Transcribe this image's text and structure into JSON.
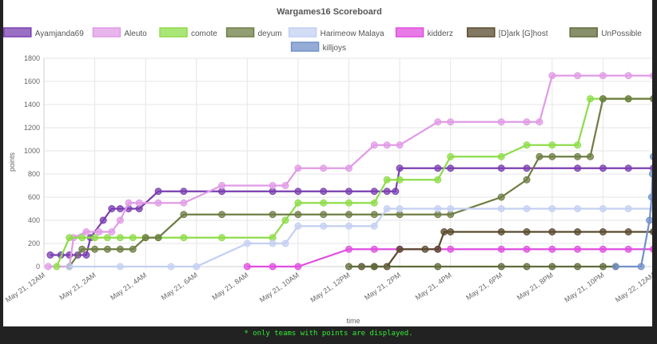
{
  "chart_data": {
    "type": "line",
    "title": "Wargames16 Scoreboard",
    "xlabel": "time",
    "ylabel": "points",
    "ylim": [
      0,
      1800
    ],
    "yticks": [
      0,
      200,
      400,
      600,
      800,
      1000,
      1200,
      1400,
      1600,
      1800
    ],
    "xlim": [
      "May 21, 12AM",
      "May 22, 12AM"
    ],
    "xticks": [
      "May 21, 12AM",
      "May 21, 2AM",
      "May 21, 4AM",
      "May 21, 6AM",
      "May 21, 8AM",
      "May 21, 10AM",
      "May 21, 12PM",
      "May 21, 2PM",
      "May 21, 4PM",
      "May 21, 6PM",
      "May 21, 8PM",
      "May 21, 10PM",
      "May 22, 12AM"
    ],
    "grid": true,
    "legend_position": "top",
    "series": [
      {
        "name": "Ayamjanda69",
        "color": "#7a3fb0",
        "points": [
          [
            "May 21, 12:15AM",
            100
          ],
          [
            "May 21, 12:40AM",
            100
          ],
          [
            "May 21, 1:00AM",
            100
          ],
          [
            "May 21, 1:20AM",
            100
          ],
          [
            "May 21, 1:40AM",
            100
          ],
          [
            "May 21, 1:50AM",
            250
          ],
          [
            "May 21, 2:20AM",
            400
          ],
          [
            "May 21, 2:40AM",
            500
          ],
          [
            "May 21, 3:00AM",
            500
          ],
          [
            "May 21, 3:20AM",
            500
          ],
          [
            "May 21, 3:45AM",
            500
          ],
          [
            "May 21, 4:30AM",
            650
          ],
          [
            "May 21, 5:30AM",
            650
          ],
          [
            "May 21, 7:00AM",
            650
          ],
          [
            "May 21, 9:00AM",
            650
          ],
          [
            "May 21, 10:00AM",
            650
          ],
          [
            "May 21, 11:00AM",
            650
          ],
          [
            "May 21, 12:00PM",
            650
          ],
          [
            "May 21, 1:00PM",
            650
          ],
          [
            "May 21, 1:30PM",
            650
          ],
          [
            "May 21, 1:50PM",
            650
          ],
          [
            "May 21, 2:00PM",
            850
          ],
          [
            "May 21, 3:30PM",
            850
          ],
          [
            "May 21, 4:00PM",
            850
          ],
          [
            "May 21, 6:00PM",
            850
          ],
          [
            "May 21, 7:00PM",
            850
          ],
          [
            "May 21, 9:00PM",
            850
          ],
          [
            "May 21, 10:00PM",
            850
          ],
          [
            "May 21, 11:00PM",
            850
          ],
          [
            "May 21, 11:59PM",
            850
          ]
        ]
      },
      {
        "name": "Aleuto",
        "color": "#e09be6",
        "points": [
          [
            "May 21, 12:10AM",
            0
          ],
          [
            "May 21, 1:00AM",
            0
          ],
          [
            "May 21, 1:10AM",
            250
          ],
          [
            "May 21, 1:40AM",
            300
          ],
          [
            "May 21, 2:10AM",
            300
          ],
          [
            "May 21, 2:40AM",
            300
          ],
          [
            "May 21, 3:00AM",
            400
          ],
          [
            "May 21, 3:20AM",
            550
          ],
          [
            "May 21, 3:45AM",
            550
          ],
          [
            "May 21, 4:30AM",
            550
          ],
          [
            "May 21, 5:30AM",
            550
          ],
          [
            "May 21, 7:00AM",
            700
          ],
          [
            "May 21, 9:00AM",
            700
          ],
          [
            "May 21, 9:30AM",
            700
          ],
          [
            "May 21, 10:00AM",
            850
          ],
          [
            "May 21, 11:00AM",
            850
          ],
          [
            "May 21, 12:00PM",
            850
          ],
          [
            "May 21, 1:00PM",
            1050
          ],
          [
            "May 21, 1:30PM",
            1050
          ],
          [
            "May 21, 2:00PM",
            1050
          ],
          [
            "May 21, 3:30PM",
            1250
          ],
          [
            "May 21, 4:00PM",
            1250
          ],
          [
            "May 21, 6:00PM",
            1250
          ],
          [
            "May 21, 7:00PM",
            1250
          ],
          [
            "May 21, 7:30PM",
            1250
          ],
          [
            "May 21, 8:00PM",
            1650
          ],
          [
            "May 21, 9:00PM",
            1650
          ],
          [
            "May 21, 10:00PM",
            1650
          ],
          [
            "May 21, 11:00PM",
            1650
          ],
          [
            "May 21, 11:59PM",
            1650
          ]
        ]
      },
      {
        "name": "comote",
        "color": "#8edc4a",
        "points": [
          [
            "May 21, 12:30AM",
            0
          ],
          [
            "May 21, 1:00AM",
            250
          ],
          [
            "May 21, 1:30AM",
            250
          ],
          [
            "May 21, 2:00AM",
            250
          ],
          [
            "May 21, 2:30AM",
            250
          ],
          [
            "May 21, 3:00AM",
            250
          ],
          [
            "May 21, 3:30AM",
            250
          ],
          [
            "May 21, 4:00AM",
            250
          ],
          [
            "May 21, 4:30AM",
            250
          ],
          [
            "May 21, 5:30AM",
            250
          ],
          [
            "May 21, 7:00AM",
            250
          ],
          [
            "May 21, 9:00AM",
            250
          ],
          [
            "May 21, 9:30AM",
            400
          ],
          [
            "May 21, 10:00AM",
            550
          ],
          [
            "May 21, 11:00AM",
            550
          ],
          [
            "May 21, 12:00PM",
            550
          ],
          [
            "May 21, 1:00PM",
            550
          ],
          [
            "May 21, 1:30PM",
            750
          ],
          [
            "May 21, 2:00PM",
            750
          ],
          [
            "May 21, 3:30PM",
            750
          ],
          [
            "May 21, 4:00PM",
            950
          ],
          [
            "May 21, 6:00PM",
            950
          ],
          [
            "May 21, 7:00PM",
            1050
          ],
          [
            "May 21, 8:00PM",
            1050
          ],
          [
            "May 21, 9:00PM",
            1050
          ],
          [
            "May 21, 9:30PM",
            1450
          ],
          [
            "May 21, 10:00PM",
            1450
          ],
          [
            "May 21, 11:00PM",
            1450
          ],
          [
            "May 21, 11:59PM",
            1450
          ]
        ]
      },
      {
        "name": "deyum",
        "color": "#6e7d44",
        "points": [
          [
            "May 21, 1:00AM",
            0
          ],
          [
            "May 21, 1:30AM",
            150
          ],
          [
            "May 21, 2:00AM",
            150
          ],
          [
            "May 21, 2:30AM",
            150
          ],
          [
            "May 21, 3:00AM",
            150
          ],
          [
            "May 21, 3:30AM",
            150
          ],
          [
            "May 21, 4:00AM",
            250
          ],
          [
            "May 21, 4:30AM",
            250
          ],
          [
            "May 21, 5:30AM",
            450
          ],
          [
            "May 21, 7:00AM",
            450
          ],
          [
            "May 21, 9:00AM",
            450
          ],
          [
            "May 21, 10:00AM",
            450
          ],
          [
            "May 21, 11:00AM",
            450
          ],
          [
            "May 21, 12:00PM",
            450
          ],
          [
            "May 21, 1:00PM",
            450
          ],
          [
            "May 21, 2:00PM",
            450
          ],
          [
            "May 21, 3:30PM",
            450
          ],
          [
            "May 21, 4:00PM",
            450
          ],
          [
            "May 21, 6:00PM",
            600
          ],
          [
            "May 21, 7:00PM",
            750
          ],
          [
            "May 21, 7:30PM",
            950
          ],
          [
            "May 21, 8:00PM",
            950
          ],
          [
            "May 21, 9:00PM",
            950
          ],
          [
            "May 21, 9:30PM",
            950
          ],
          [
            "May 21, 10:00PM",
            1450
          ],
          [
            "May 21, 11:00PM",
            1450
          ],
          [
            "May 21, 11:59PM",
            1450
          ]
        ]
      },
      {
        "name": "Harimeow Malaya",
        "color": "#c4d0f2",
        "points": [
          [
            "May 21, 1:00AM",
            0
          ],
          [
            "May 21, 3:00AM",
            0
          ],
          [
            "May 21, 5:00AM",
            0
          ],
          [
            "May 21, 6:00AM",
            0
          ],
          [
            "May 21, 8:00AM",
            200
          ],
          [
            "May 21, 9:00AM",
            200
          ],
          [
            "May 21, 9:30AM",
            200
          ],
          [
            "May 21, 10:00AM",
            350
          ],
          [
            "May 21, 11:00AM",
            350
          ],
          [
            "May 21, 12:00PM",
            350
          ],
          [
            "May 21, 1:00PM",
            350
          ],
          [
            "May 21, 1:30PM",
            500
          ],
          [
            "May 21, 2:00PM",
            500
          ],
          [
            "May 21, 3:30PM",
            500
          ],
          [
            "May 21, 4:00PM",
            500
          ],
          [
            "May 21, 6:00PM",
            500
          ],
          [
            "May 21, 7:00PM",
            500
          ],
          [
            "May 21, 8:00PM",
            500
          ],
          [
            "May 21, 9:00PM",
            500
          ],
          [
            "May 21, 10:00PM",
            500
          ],
          [
            "May 21, 11:00PM",
            500
          ],
          [
            "May 21, 11:59PM",
            500
          ]
        ]
      },
      {
        "name": "kidderz",
        "color": "#e04ee0",
        "points": [
          [
            "May 21, 8:00AM",
            0
          ],
          [
            "May 21, 9:00AM",
            0
          ],
          [
            "May 21, 10:00AM",
            0
          ],
          [
            "May 21, 12:00PM",
            150
          ],
          [
            "May 21, 1:00PM",
            150
          ],
          [
            "May 21, 2:00PM",
            150
          ],
          [
            "May 21, 3:30PM",
            150
          ],
          [
            "May 21, 4:00PM",
            150
          ],
          [
            "May 21, 6:00PM",
            150
          ],
          [
            "May 21, 7:00PM",
            150
          ],
          [
            "May 21, 8:00PM",
            150
          ],
          [
            "May 21, 9:00PM",
            150
          ],
          [
            "May 21, 10:00PM",
            150
          ],
          [
            "May 21, 11:00PM",
            150
          ],
          [
            "May 21, 11:59PM",
            150
          ]
        ]
      },
      {
        "name": "[D]ark [G]host",
        "color": "#5a4b2e",
        "points": [
          [
            "May 21, 12:30PM",
            0
          ],
          [
            "May 21, 1:00PM",
            0
          ],
          [
            "May 21, 1:30PM",
            0
          ],
          [
            "May 21, 2:00PM",
            150
          ],
          [
            "May 21, 3:00PM",
            150
          ],
          [
            "May 21, 3:30PM",
            150
          ],
          [
            "May 21, 3:45PM",
            300
          ],
          [
            "May 21, 4:00PM",
            300
          ],
          [
            "May 21, 6:00PM",
            300
          ],
          [
            "May 21, 7:00PM",
            300
          ],
          [
            "May 21, 8:00PM",
            300
          ],
          [
            "May 21, 9:00PM",
            300
          ],
          [
            "May 21, 10:00PM",
            300
          ],
          [
            "May 21, 11:00PM",
            300
          ],
          [
            "May 21, 11:59PM",
            300
          ]
        ]
      },
      {
        "name": "UnPossible",
        "color": "#5f6b3a",
        "points": [
          [
            "May 21, 12:00PM",
            0
          ],
          [
            "May 21, 1:00PM",
            0
          ],
          [
            "May 21, 3:30PM",
            0
          ],
          [
            "May 21, 6:00PM",
            0
          ],
          [
            "May 21, 7:00PM",
            0
          ],
          [
            "May 21, 8:00PM",
            0
          ],
          [
            "May 21, 9:00PM",
            0
          ],
          [
            "May 21, 10:00PM",
            0
          ],
          [
            "May 21, 10:30PM",
            0
          ]
        ]
      },
      {
        "name": "killjoys",
        "color": "#7290c8",
        "points": [
          [
            "May 21, 10:30PM",
            0
          ],
          [
            "May 21, 11:30PM",
            0
          ],
          [
            "May 21, 11:50PM",
            400
          ],
          [
            "May 21, 11:55PM",
            600
          ],
          [
            "May 21, 11:57PM",
            800
          ],
          [
            "May 21, 11:59PM",
            950
          ]
        ]
      }
    ]
  },
  "footnote": "* only teams with points are displayed."
}
